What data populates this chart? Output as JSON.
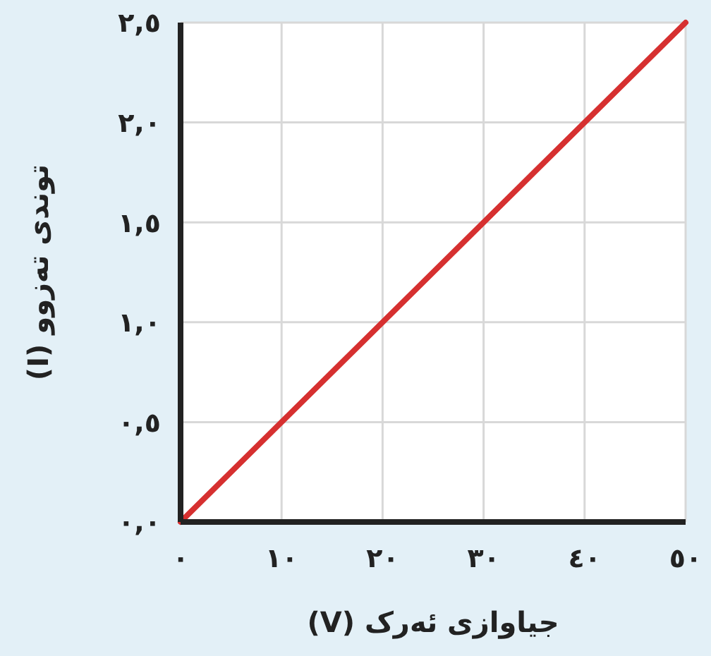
{
  "chart_data": {
    "type": "line",
    "xlabel": "جیاوازی ئەرک (V)",
    "ylabel": "توندی تەزوو (I)",
    "x": [
      0,
      50
    ],
    "series": [
      {
        "color": "#d63030",
        "values": [
          0,
          2.5
        ]
      }
    ],
    "xlim": [
      0,
      50
    ],
    "ylim": [
      0,
      2.5
    ],
    "xticks": [
      {
        "value": 0,
        "label": "٠"
      },
      {
        "value": 10,
        "label": "١٠"
      },
      {
        "value": 20,
        "label": "٢٠"
      },
      {
        "value": 30,
        "label": "٣٠"
      },
      {
        "value": 40,
        "label": "٤٠"
      },
      {
        "value": 50,
        "label": "٥٠"
      }
    ],
    "yticks": [
      {
        "value": 0,
        "label": "٠,٠"
      },
      {
        "value": 0.5,
        "label": "٠,٥"
      },
      {
        "value": 1,
        "label": "١,٠"
      },
      {
        "value": 1.5,
        "label": "١,٥"
      },
      {
        "value": 2,
        "label": "٢,٠"
      },
      {
        "value": 2.5,
        "label": "٢,٥"
      }
    ],
    "grid": true,
    "marker": "none",
    "line_style": "solid"
  }
}
